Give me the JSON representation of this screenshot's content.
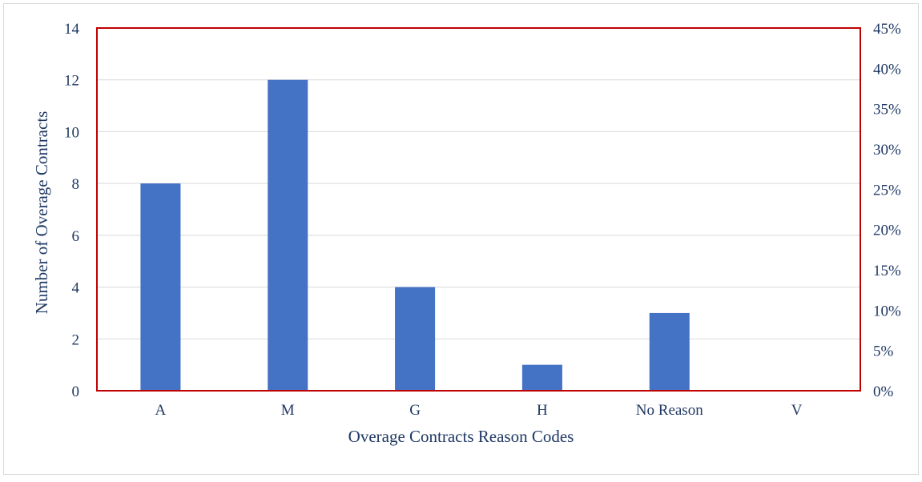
{
  "chart_data": {
    "type": "bar",
    "categories": [
      "A",
      "M",
      "G",
      "H",
      "No Reason",
      "V"
    ],
    "series": [
      {
        "values": [
          8,
          12,
          4,
          1,
          3,
          0
        ],
        "color": "#4472c4"
      }
    ],
    "xlabel": "Overage Contracts Reason Codes",
    "ylabel": "Number of Overage Contracts",
    "ylim": [
      0,
      14
    ],
    "yticks": [
      0,
      2,
      4,
      6,
      8,
      10,
      12,
      14
    ],
    "y2lim": [
      0,
      0.45
    ],
    "y2ticks": [
      "0%",
      "5%",
      "10%",
      "15%",
      "20%",
      "25%",
      "30%",
      "35%",
      "40%",
      "45%"
    ],
    "grid": true,
    "legend": "none",
    "colors": {
      "bar": "#4472c4",
      "plot_border": "#c00000",
      "grid": "#d9d9d9",
      "text": "#1f3864"
    }
  }
}
